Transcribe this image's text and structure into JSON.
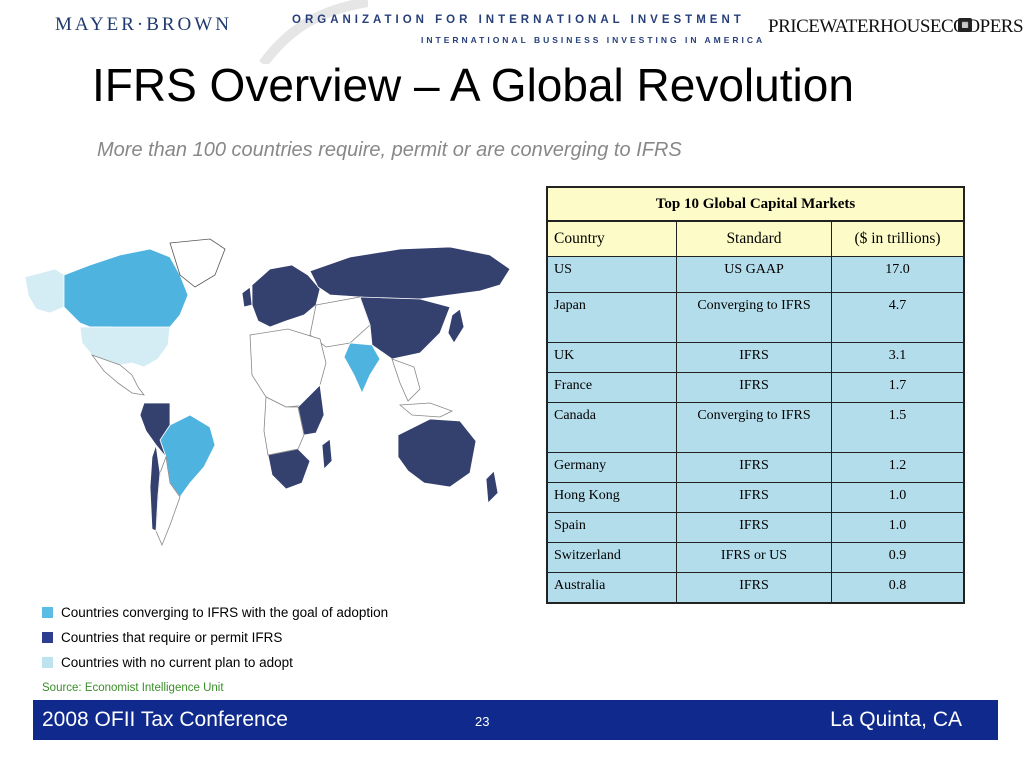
{
  "header": {
    "logo_left": "MAYER·BROWN",
    "logo_mid_line1": "ORGANIZATION FOR INTERNATIONAL INVESTMENT",
    "logo_mid_line2": "INTERNATIONAL BUSINESS INVESTING IN AMERICA",
    "logo_right": "PRICEWATERHOUSECOOPERS"
  },
  "slide": {
    "title": "IFRS Overview – A Global Revolution",
    "subtitle": "More than 100 countries require, permit or are converging to IFRS"
  },
  "table": {
    "caption": "Top 10 Global Capital Markets",
    "headers": [
      "Country",
      "Standard",
      "($ in trillions)"
    ],
    "rows": [
      [
        "US",
        "US GAAP",
        "17.0"
      ],
      [
        "Japan",
        "Converging to IFRS",
        "4.7"
      ],
      [
        "UK",
        "IFRS",
        "3.1"
      ],
      [
        "France",
        "IFRS",
        "1.7"
      ],
      [
        "Canada",
        "Converging to IFRS",
        "1.5"
      ],
      [
        "Germany",
        "IFRS",
        "1.2"
      ],
      [
        "Hong Kong",
        "IFRS",
        "1.0"
      ],
      [
        "Spain",
        "IFRS",
        "1.0"
      ],
      [
        "Switzerland",
        "IFRS or US",
        "0.9"
      ],
      [
        "Australia",
        "IFRS",
        "0.8"
      ]
    ]
  },
  "legend": [
    {
      "label": "Countries converging to IFRS with the goal of adoption",
      "color": "#5bbce4"
    },
    {
      "label": "Countries that require or permit IFRS",
      "color": "#2e3d8f"
    },
    {
      "label": "Countries with no current plan to adopt",
      "color": "#bde3ef"
    }
  ],
  "map_colors": {
    "converging": "#4fb3df",
    "require": "#34406e",
    "none": "#d4ecf4",
    "other": "#ffffff"
  },
  "source": "Source: Economist Intelligence Unit",
  "footer": {
    "left": "2008 OFII Tax Conference",
    "page": "23",
    "right": "La Quinta, CA",
    "color": "#0f2a8c"
  }
}
